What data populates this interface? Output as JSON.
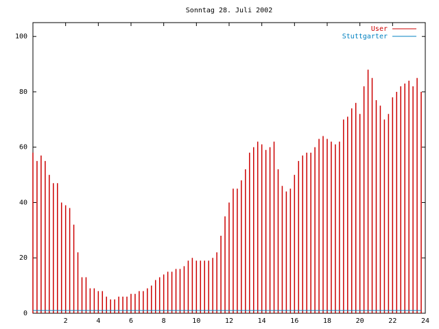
{
  "chart_data": {
    "type": "impulses",
    "title": "Sonntag 28. Juli 2002",
    "x": [
      0,
      0.25,
      0.5,
      0.75,
      1,
      1.25,
      1.5,
      1.75,
      2,
      2.25,
      2.5,
      2.75,
      3,
      3.25,
      3.5,
      3.75,
      4,
      4.25,
      4.5,
      4.75,
      5,
      5.25,
      5.5,
      5.75,
      6,
      6.25,
      6.5,
      6.75,
      7,
      7.25,
      7.5,
      7.75,
      8,
      8.25,
      8.5,
      8.75,
      9,
      9.25,
      9.5,
      9.75,
      10,
      10.25,
      10.5,
      10.75,
      11,
      11.25,
      11.5,
      11.75,
      12,
      12.25,
      12.5,
      12.75,
      13,
      13.25,
      13.5,
      13.75,
      14,
      14.25,
      14.5,
      14.75,
      15,
      15.25,
      15.5,
      15.75,
      16,
      16.25,
      16.5,
      16.75,
      17,
      17.25,
      17.5,
      17.75,
      18,
      18.25,
      18.5,
      18.75,
      19,
      19.25,
      19.5,
      19.75,
      20,
      20.25,
      20.5,
      20.75,
      21,
      21.25,
      21.5,
      21.75,
      22,
      22.25,
      22.5,
      22.75,
      23,
      23.25,
      23.5,
      23.75
    ],
    "series": [
      {
        "name": "User",
        "color": "#cc0000",
        "style": "impulses",
        "values": [
          58,
          55,
          57,
          55,
          50,
          47,
          47,
          40,
          39,
          38,
          32,
          22,
          13,
          13,
          9,
          9,
          8,
          8,
          6,
          5,
          5,
          6,
          6,
          6,
          7,
          7,
          8,
          8,
          9,
          10,
          12,
          13,
          14,
          15,
          15,
          16,
          16,
          17,
          19,
          20,
          19,
          19,
          19,
          19,
          20,
          22,
          28,
          35,
          40,
          45,
          45,
          48,
          52,
          58,
          60,
          62,
          61,
          59,
          60,
          62,
          52,
          46,
          44,
          45,
          50,
          55,
          57,
          58,
          58,
          60,
          63,
          64,
          63,
          62,
          61,
          62,
          70,
          71,
          74,
          76,
          72,
          82,
          88,
          85,
          77,
          75,
          70,
          72,
          78,
          80,
          82,
          83,
          84,
          82,
          85,
          80
        ]
      },
      {
        "name": "Stuttgarter",
        "color": "#0080c0",
        "style": "line",
        "values": [
          1,
          1,
          1,
          1,
          1,
          1,
          1,
          1,
          1,
          1,
          1,
          1,
          1,
          1,
          1,
          1,
          1,
          1,
          1,
          1,
          1,
          1,
          1,
          1,
          1,
          1,
          1,
          1,
          1,
          1,
          1,
          1,
          1,
          1,
          1,
          1,
          1,
          1,
          1,
          1,
          1,
          1,
          1,
          1,
          1,
          1,
          1,
          1,
          1,
          1,
          1,
          1,
          1,
          1,
          1,
          1,
          1,
          1,
          1,
          1,
          1,
          1,
          1,
          1,
          1,
          1,
          1,
          1,
          1,
          1,
          1,
          1,
          1,
          1,
          1,
          1,
          1,
          1,
          1,
          1,
          1,
          1,
          1,
          1,
          1,
          1,
          1,
          1,
          1,
          1,
          1,
          1,
          1,
          1,
          1,
          1
        ]
      }
    ],
    "xlim": [
      0,
      24
    ],
    "xticks": [
      2,
      4,
      6,
      8,
      10,
      12,
      14,
      16,
      18,
      20,
      22,
      24
    ],
    "ylim": [
      0,
      105
    ],
    "yticks": [
      0,
      20,
      40,
      60,
      80,
      100
    ]
  }
}
